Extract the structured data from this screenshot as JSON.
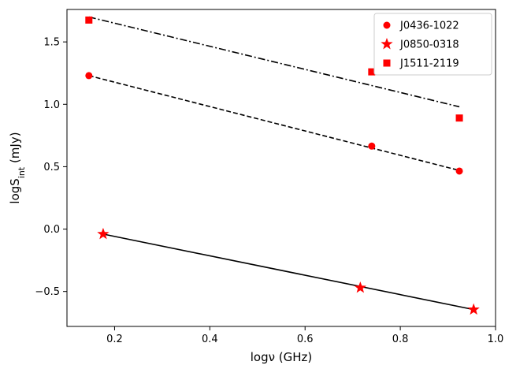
{
  "chart_data": {
    "type": "scatter",
    "xlabel": "logν (GHz)",
    "ylabel": "logS_int (mJy)",
    "xlim": [
      0.1,
      1.0
    ],
    "ylim": [
      -0.78,
      1.76
    ],
    "xticks": [
      "0.2",
      "0.4",
      "0.6",
      "0.8",
      "1.0"
    ],
    "xtick_values": [
      0.2,
      0.4,
      0.6,
      0.8,
      1.0
    ],
    "yticks": [
      "−0.5",
      "0.0",
      "0.5",
      "1.0",
      "1.5"
    ],
    "ytick_values": [
      -0.5,
      0.0,
      0.5,
      1.0,
      1.5
    ],
    "grid": false,
    "legend_position": "top-right",
    "marker_color": "#ff0000",
    "line_color": "#000000",
    "series": [
      {
        "name": "J0436-1022",
        "marker": "circle",
        "points": [
          [
            0.146,
            1.23
          ],
          [
            0.74,
            0.665
          ],
          [
            0.924,
            0.465
          ]
        ],
        "fit": {
          "style": "dashed",
          "x": [
            0.146,
            0.924
          ],
          "y": [
            1.23,
            0.47
          ]
        }
      },
      {
        "name": "J0850-0318",
        "marker": "star",
        "points": [
          [
            0.176,
            -0.04
          ],
          [
            0.716,
            -0.47
          ],
          [
            0.954,
            -0.645
          ]
        ],
        "fit": {
          "style": "solid",
          "x": [
            0.176,
            0.954
          ],
          "y": [
            -0.04,
            -0.645
          ]
        }
      },
      {
        "name": "J1511-2119",
        "marker": "square",
        "points": [
          [
            0.146,
            1.675
          ],
          [
            0.74,
            1.26
          ],
          [
            0.924,
            0.89
          ]
        ],
        "fit": {
          "style": "dashdot",
          "x": [
            0.146,
            0.924
          ],
          "y": [
            1.7,
            0.98
          ]
        }
      }
    ]
  }
}
